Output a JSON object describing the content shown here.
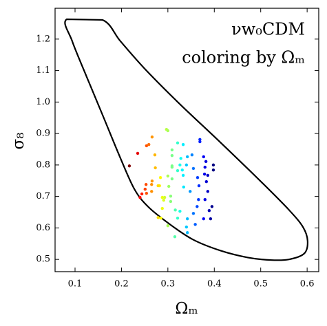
{
  "chart_data": {
    "type": "scatter",
    "annotations": [
      "νw₀CDM",
      "coloring by Ωₘ"
    ],
    "xlabel": "Ωₘ",
    "ylabel": "σ₈",
    "xlim": [
      0.057,
      0.625
    ],
    "ylim": [
      0.461,
      1.298
    ],
    "xticks": [
      0.1,
      0.2,
      0.3,
      0.4,
      0.5,
      0.6
    ],
    "yticks": [
      0.5,
      0.6,
      0.7,
      0.8,
      0.9,
      {
        "value": 1,
        "label": "1.0"
      },
      1.1,
      1.2
    ],
    "colormap": "jet_r",
    "color_by": "x",
    "x": [
      0.217,
      0.235,
      0.254,
      0.259,
      0.266,
      0.297,
      0.3,
      0.272,
      0.273,
      0.284,
      0.266,
      0.265,
      0.253,
      0.251,
      0.244,
      0.24,
      0.254,
      0.265,
      0.282,
      0.279,
      0.302,
      0.288,
      0.293,
      0.291,
      0.288,
      0.279,
      0.285,
      0.3,
      0.309,
      0.3,
      0.309,
      0.309,
      0.309,
      0.309,
      0.321,
      0.321,
      0.333,
      0.328,
      0.326,
      0.331,
      0.34,
      0.342,
      0.333,
      0.334,
      0.306,
      0.306,
      0.316,
      0.326,
      0.321,
      0.315,
      0.34,
      0.342,
      0.342,
      0.355,
      0.348,
      0.352,
      0.355,
      0.369,
      0.369,
      0.364,
      0.367,
      0.366,
      0.363,
      0.359,
      0.377,
      0.382,
      0.38,
      0.379,
      0.386,
      0.383,
      0.386,
      0.38,
      0.377,
      0.392,
      0.395,
      0.389,
      0.398,
      0.398
    ],
    "values": [
      0.797,
      0.837,
      0.861,
      0.865,
      0.889,
      0.913,
      0.909,
      0.832,
      0.791,
      0.76,
      0.749,
      0.738,
      0.738,
      0.723,
      0.708,
      0.697,
      0.71,
      0.716,
      0.734,
      0.734,
      0.732,
      0.697,
      0.697,
      0.688,
      0.662,
      0.633,
      0.631,
      0.607,
      0.756,
      0.765,
      0.848,
      0.83,
      0.797,
      0.793,
      0.87,
      0.782,
      0.865,
      0.821,
      0.8,
      0.784,
      0.8,
      0.826,
      0.767,
      0.73,
      0.701,
      0.684,
      0.657,
      0.653,
      0.631,
      0.572,
      0.603,
      0.585,
      0.629,
      0.646,
      0.716,
      0.832,
      0.789,
      0.881,
      0.874,
      0.76,
      0.734,
      0.69,
      0.668,
      0.611,
      0.826,
      0.811,
      0.793,
      0.771,
      0.767,
      0.747,
      0.716,
      0.69,
      0.629,
      0.629,
      0.668,
      0.655,
      0.8,
      0.784
    ],
    "contour": {
      "x": [
        0.082,
        0.159,
        0.198,
        0.25,
        0.324,
        0.413,
        0.502,
        0.561,
        0.591,
        0.601,
        0.594,
        0.561,
        0.521,
        0.472,
        0.413,
        0.354,
        0.302,
        0.257,
        0.228,
        0.198,
        0.161,
        0.124,
        0.094
      ],
      "y": [
        1.263,
        1.261,
        1.193,
        1.106,
        0.996,
        0.872,
        0.745,
        0.657,
        0.603,
        0.559,
        0.519,
        0.5,
        0.498,
        0.506,
        0.528,
        0.563,
        0.614,
        0.668,
        0.723,
        0.821,
        0.953,
        1.084,
        1.193
      ]
    }
  }
}
